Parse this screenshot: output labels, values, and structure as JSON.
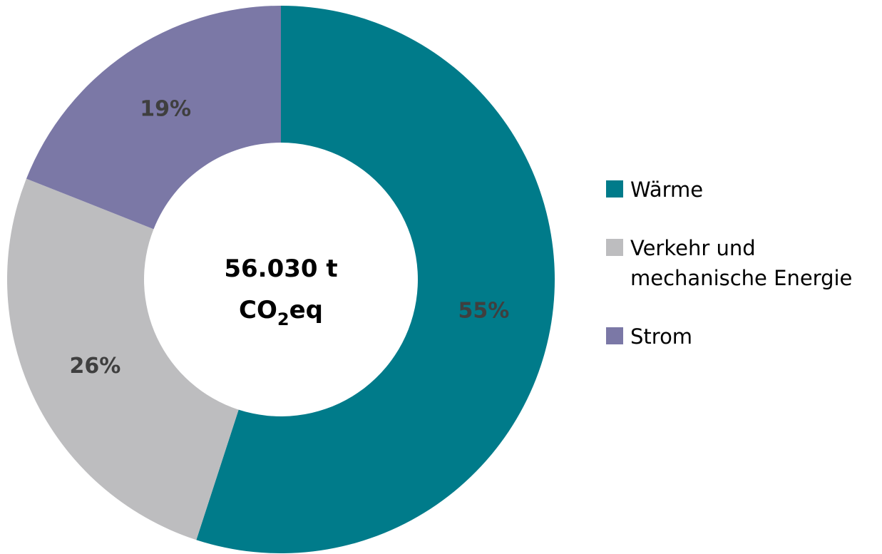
{
  "chart_data": {
    "type": "donut",
    "categories": [
      "Wärme",
      "Verkehr und mechanische Energie",
      "Strom"
    ],
    "values": [
      55,
      26,
      19
    ],
    "value_labels": [
      "55%",
      "26%",
      "19%"
    ],
    "colors": [
      "#007b8a",
      "#bdbdbf",
      "#7b78a6"
    ],
    "center_label": {
      "line1": "56.030 t",
      "line2": [
        "CO",
        "2",
        "eq"
      ]
    },
    "legend": "right"
  }
}
